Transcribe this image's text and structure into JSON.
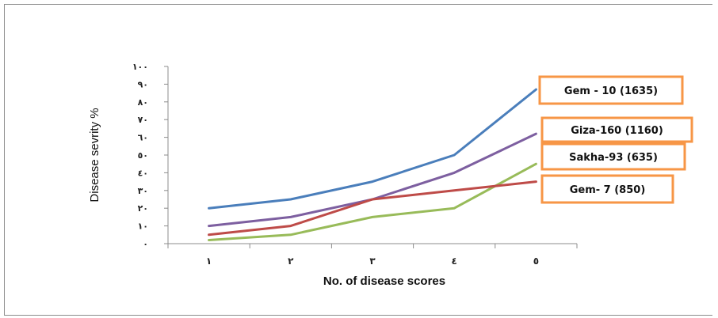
{
  "chart_data": {
    "type": "line",
    "title": "",
    "xlabel": "No. of disease scores",
    "ylabel": "Disease sevrity %",
    "x_categories": [
      "١",
      "٢",
      "٣",
      "٤",
      "٥"
    ],
    "y_ticks": [
      "٠",
      "١٠",
      "٢٠",
      "٣٠",
      "٤٠",
      "٥٠",
      "٦٠",
      "٧٠",
      "٨٠",
      "٩٠",
      "١٠٠"
    ],
    "ylim": [
      0,
      100
    ],
    "grid": false,
    "series": [
      {
        "name": "Gem - 10 (1635)",
        "color": "#4a7ebb",
        "values": [
          20,
          25,
          35,
          50,
          87
        ]
      },
      {
        "name": "Giza-160 (1160)",
        "color": "#7d5fa0",
        "values": [
          10,
          15,
          25,
          40,
          62
        ]
      },
      {
        "name": "Sakha-93 (635)",
        "color": "#98bb59",
        "values": [
          2,
          5,
          15,
          20,
          45
        ]
      },
      {
        "name": "Gem- 7 (850)",
        "color": "#be4b48",
        "values": [
          5,
          10,
          25,
          30,
          35
        ]
      }
    ],
    "callout_border_color": "#f79646"
  }
}
